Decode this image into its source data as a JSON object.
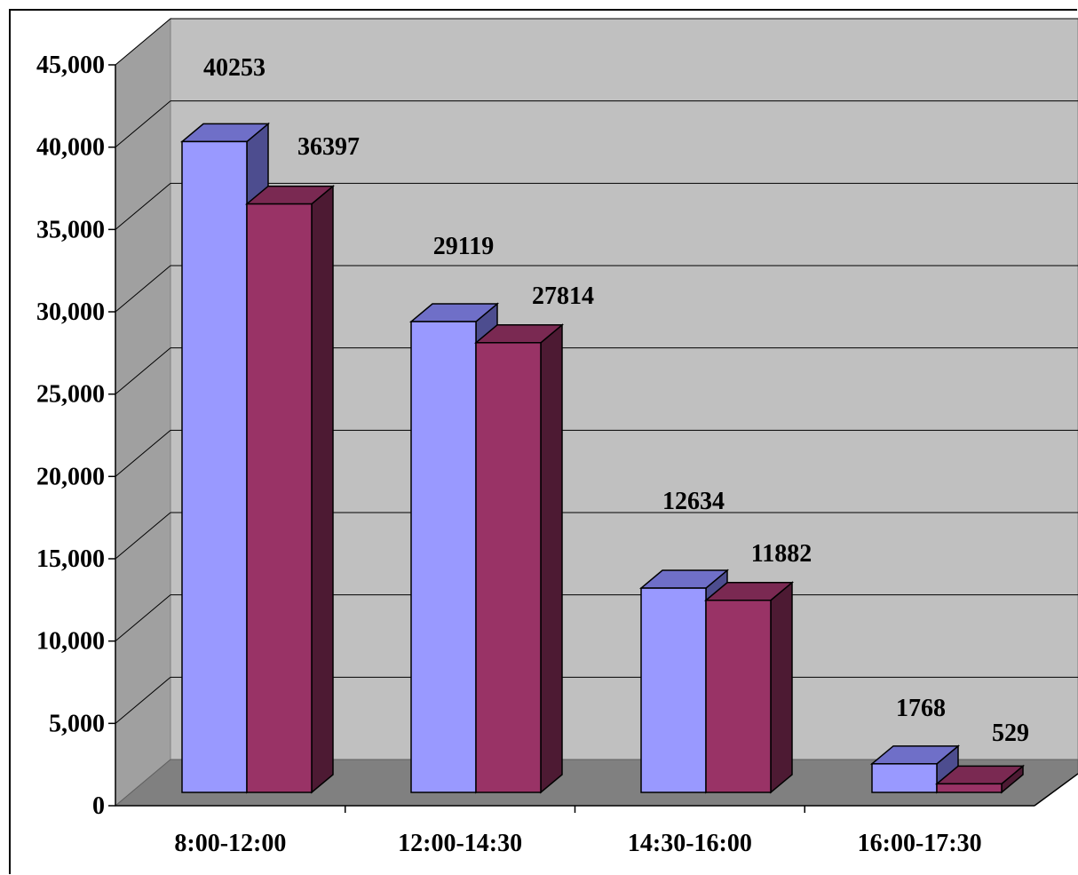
{
  "chart_data": {
    "type": "bar",
    "style": "3d-clustered-column",
    "categories": [
      "8:00-12:00",
      "12:00-14:30",
      "14:30-16:00",
      "16:00-17:30"
    ],
    "series": [
      {
        "values": [
          40253,
          29119,
          12634,
          1768
        ],
        "color": "#9999ff"
      },
      {
        "values": [
          36397,
          27814,
          11882,
          529
        ],
        "color": "#993366"
      }
    ],
    "data_labels": [
      [
        "40253",
        "29119",
        "12634",
        "1768"
      ],
      [
        "36397",
        "27814",
        "11882",
        "529"
      ]
    ],
    "ylim": [
      0,
      45000
    ],
    "yticks": [
      "0",
      "5,000",
      "10,000",
      "15,000",
      "20,000",
      "25,000",
      "30,000",
      "35,000",
      "40,000",
      "45,000"
    ],
    "grid": true,
    "legend": "none",
    "title": "",
    "xlabel": "",
    "ylabel": ""
  },
  "colors": {
    "wall": "#c0c0c0",
    "side_wall": "#a0a0a0",
    "floor": "#808080",
    "series1_top": "#6f6fc8",
    "series1_side": "#4d4d8f",
    "series2_top": "#7a2952",
    "series2_side": "#4d1a33"
  }
}
